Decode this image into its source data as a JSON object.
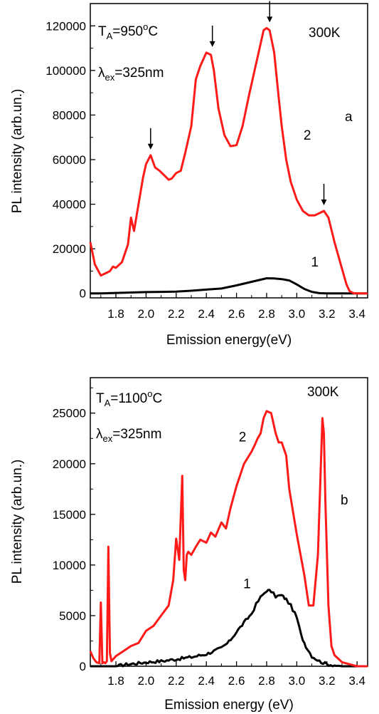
{
  "colors": {
    "series_1": "#000000",
    "series_2": "#ff1a1a",
    "axis": "#000000"
  },
  "chart_data": [
    {
      "type": "line",
      "panel_label": "a",
      "annotation_temp": {
        "main": "T",
        "sub": "A",
        "rest": "=950",
        "sup": "o",
        "unit": "C"
      },
      "annotation_lambda": {
        "main": "λ",
        "sub": "ex",
        "rest": "=325nm"
      },
      "annotation_K": "300K",
      "xlabel": "Emission energy(eV)",
      "ylabel": "PL intensity (arb.un.)",
      "xlim": [
        1.63,
        3.47
      ],
      "ylim": [
        -2000,
        130000
      ],
      "xticks": [
        "1.8",
        "2.0",
        "2.2",
        "2.4",
        "2.6",
        "2.8",
        "3.0",
        "3.2",
        "3.4"
      ],
      "yticks": [
        "0",
        "20000",
        "40000",
        "60000",
        "80000",
        "100000",
        "120000"
      ],
      "series": [
        {
          "name": "1",
          "x": [
            1.63,
            1.7,
            1.8,
            1.9,
            2.0,
            2.1,
            2.2,
            2.3,
            2.4,
            2.5,
            2.6,
            2.65,
            2.7,
            2.75,
            2.8,
            2.85,
            2.9,
            2.95,
            3.0,
            3.05,
            3.1,
            3.15,
            3.2,
            3.3,
            3.47
          ],
          "y": [
            0,
            0,
            200,
            400,
            600,
            700,
            800,
            1200,
            1700,
            2200,
            3600,
            4400,
            5200,
            6000,
            6800,
            6700,
            6400,
            5800,
            4000,
            2000,
            700,
            100,
            0,
            0,
            0
          ]
        },
        {
          "name": "2",
          "x": [
            1.63,
            1.66,
            1.7,
            1.73,
            1.76,
            1.78,
            1.8,
            1.84,
            1.88,
            1.9,
            1.92,
            1.95,
            1.98,
            2.0,
            2.03,
            2.06,
            2.09,
            2.12,
            2.15,
            2.17,
            2.2,
            2.23,
            2.26,
            2.3,
            2.33,
            2.36,
            2.4,
            2.43,
            2.45,
            2.48,
            2.52,
            2.56,
            2.6,
            2.64,
            2.68,
            2.72,
            2.76,
            2.78,
            2.8,
            2.82,
            2.85,
            2.88,
            2.9,
            2.93,
            2.96,
            3.0,
            3.04,
            3.08,
            3.12,
            3.15,
            3.18,
            3.21,
            3.25,
            3.3,
            3.33,
            3.35,
            3.38,
            3.47
          ],
          "y": [
            23000,
            13000,
            8000,
            9000,
            10000,
            12000,
            11500,
            14000,
            22000,
            34000,
            28000,
            40000,
            52000,
            58000,
            62000,
            56500,
            55000,
            53000,
            51000,
            51500,
            54000,
            55000,
            63000,
            75000,
            96000,
            102000,
            108000,
            107000,
            100000,
            83000,
            71000,
            66000,
            66500,
            75000,
            88000,
            100000,
            112000,
            118000,
            119000,
            118000,
            108000,
            88000,
            75000,
            60000,
            50000,
            42000,
            37000,
            35000,
            35000,
            36000,
            37000,
            34000,
            23000,
            11000,
            4000,
            1000,
            0,
            0
          ]
        }
      ],
      "arrows_at": [
        2.03,
        2.44,
        2.82,
        3.18
      ],
      "arrow_heights": [
        62000,
        108000,
        119000,
        37000
      ],
      "series_labels": [
        {
          "text": "1",
          "at_x": 3.12,
          "at_y": 12000
        },
        {
          "text": "2",
          "at_x": 3.07,
          "at_y": 69000
        }
      ]
    },
    {
      "type": "line",
      "panel_label": "b",
      "annotation_temp": {
        "main": "T",
        "sub": "A",
        "rest": "=1100",
        "sup": "o",
        "unit": "C"
      },
      "annotation_lambda": {
        "main": "λ",
        "sub": "ex",
        "rest": "=325nm"
      },
      "annotation_K": "300K",
      "xlabel": "Emission energy (eV)",
      "ylabel": "PL intensity (arb.un.)",
      "xlim": [
        1.63,
        3.47
      ],
      "ylim": [
        0,
        28500
      ],
      "xticks": [
        "1.8",
        "2.0",
        "2.2",
        "2.4",
        "2.6",
        "2.8",
        "3.0",
        "3.2",
        "3.4"
      ],
      "yticks": [
        "0",
        "5000",
        "10000",
        "15000",
        "20000",
        "25000"
      ],
      "series": [
        {
          "name": "1",
          "x": [
            1.63,
            1.7,
            1.8,
            1.88,
            1.95,
            2.0,
            2.1,
            2.2,
            2.3,
            2.4,
            2.5,
            2.55,
            2.6,
            2.65,
            2.7,
            2.73,
            2.76,
            2.8,
            2.83,
            2.86,
            2.9,
            2.93,
            2.96,
            3.0,
            3.03,
            3.06,
            3.1,
            3.15,
            3.2,
            3.3,
            3.47
          ],
          "y": [
            0,
            0,
            0,
            200,
            300,
            400,
            500,
            700,
            900,
            1200,
            1800,
            2400,
            3400,
            4300,
            5200,
            6100,
            6800,
            7500,
            7400,
            6900,
            7000,
            6600,
            6000,
            4800,
            3000,
            2000,
            1000,
            500,
            200,
            0,
            0
          ],
          "noise": 150
        },
        {
          "name": "2",
          "x": [
            1.63,
            1.65,
            1.67,
            1.69,
            1.7,
            1.71,
            1.72,
            1.73,
            1.74,
            1.75,
            1.76,
            1.77,
            1.8,
            1.85,
            1.9,
            1.95,
            2.0,
            2.05,
            2.1,
            2.15,
            2.18,
            2.2,
            2.22,
            2.24,
            2.25,
            2.26,
            2.27,
            2.28,
            2.3,
            2.33,
            2.36,
            2.4,
            2.43,
            2.46,
            2.5,
            2.53,
            2.56,
            2.6,
            2.65,
            2.7,
            2.72,
            2.74,
            2.76,
            2.78,
            2.8,
            2.83,
            2.86,
            2.88,
            2.9,
            2.93,
            2.95,
            3.0,
            3.05,
            3.08,
            3.11,
            3.14,
            3.16,
            3.17,
            3.18,
            3.19,
            3.21,
            3.23,
            3.25,
            3.3,
            3.35,
            3.4,
            3.47
          ],
          "y": [
            1500,
            800,
            400,
            300,
            6300,
            300,
            400,
            300,
            500,
            11800,
            1300,
            500,
            1000,
            1500,
            2000,
            2300,
            3500,
            4000,
            5000,
            6000,
            8500,
            12600,
            10500,
            18800,
            9500,
            8500,
            11000,
            11300,
            11000,
            11800,
            12500,
            12200,
            13200,
            12800,
            14200,
            13600,
            15600,
            17800,
            20000,
            21200,
            21800,
            22500,
            23000,
            24500,
            25200,
            25000,
            23000,
            22100,
            22100,
            20800,
            17500,
            13000,
            9000,
            6000,
            6000,
            11000,
            20000,
            24500,
            23000,
            16000,
            6000,
            2000,
            1100,
            400,
            200,
            0,
            0
          ]
        }
      ],
      "series_labels": [
        {
          "text": "1",
          "at_x": 2.67,
          "at_y": 7700
        },
        {
          "text": "2",
          "at_x": 2.64,
          "at_y": 22200
        }
      ]
    }
  ]
}
